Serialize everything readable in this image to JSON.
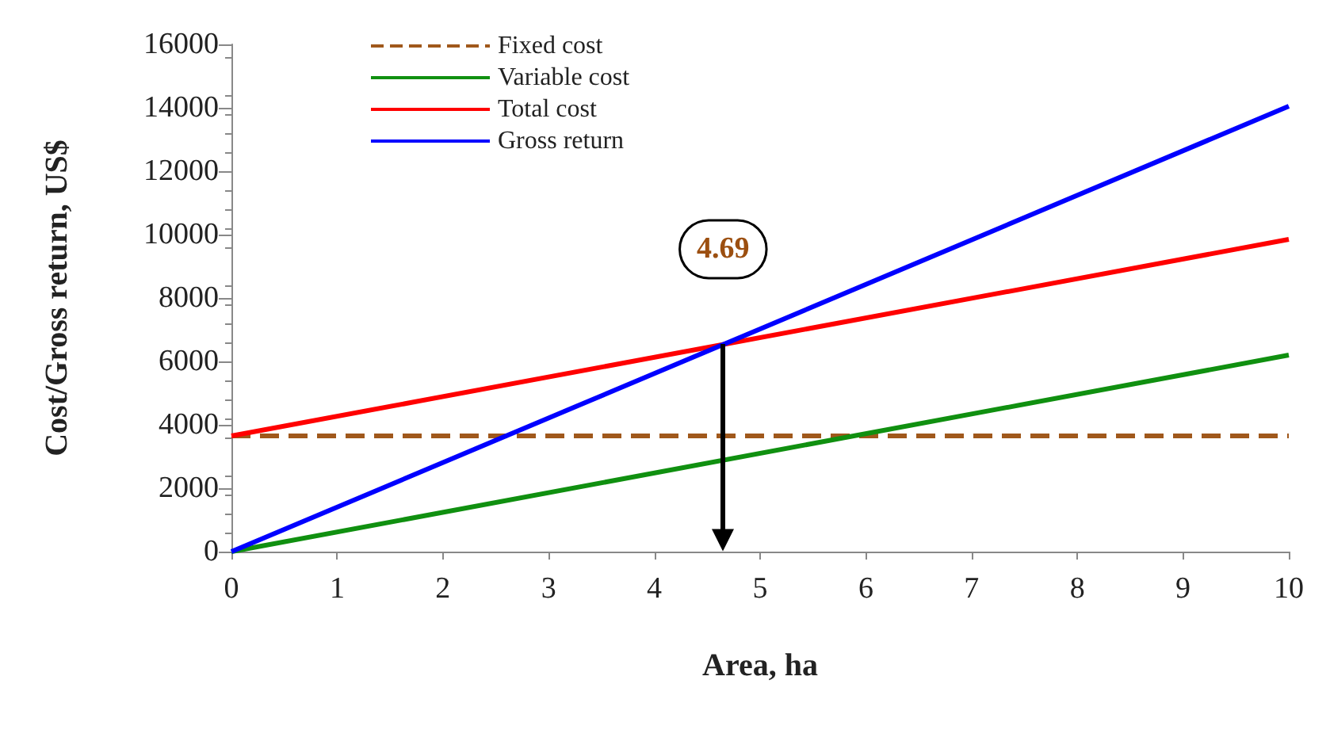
{
  "chart_data": {
    "type": "line",
    "xlabel": "Area, ha",
    "ylabel": "Cost/Gross return, US$",
    "x": [
      0,
      10
    ],
    "series": [
      {
        "name": "Fixed cost",
        "color": "#a0581b",
        "values": [
          3650,
          3650
        ],
        "line_style": "dashed"
      },
      {
        "name": "Variable cost",
        "color": "#109010",
        "values": [
          0,
          6200
        ]
      },
      {
        "name": "Total cost",
        "color": "#ff0000",
        "values": [
          3650,
          9850
        ]
      },
      {
        "name": "Gross return",
        "color": "#0000ff",
        "values": [
          0,
          14050
        ]
      }
    ],
    "xlim": [
      0,
      10
    ],
    "xticks": [
      0,
      1,
      2,
      3,
      4,
      5,
      6,
      7,
      8,
      9,
      10
    ],
    "ylim": [
      0,
      16000
    ],
    "yticks": [
      0,
      2000,
      4000,
      6000,
      8000,
      10000,
      12000,
      14000,
      16000
    ],
    "grid": false,
    "legend": "top left",
    "marker": "none",
    "annotations": [
      {
        "text": "4.69",
        "x": 4.65,
        "y": 6540
      }
    ]
  }
}
